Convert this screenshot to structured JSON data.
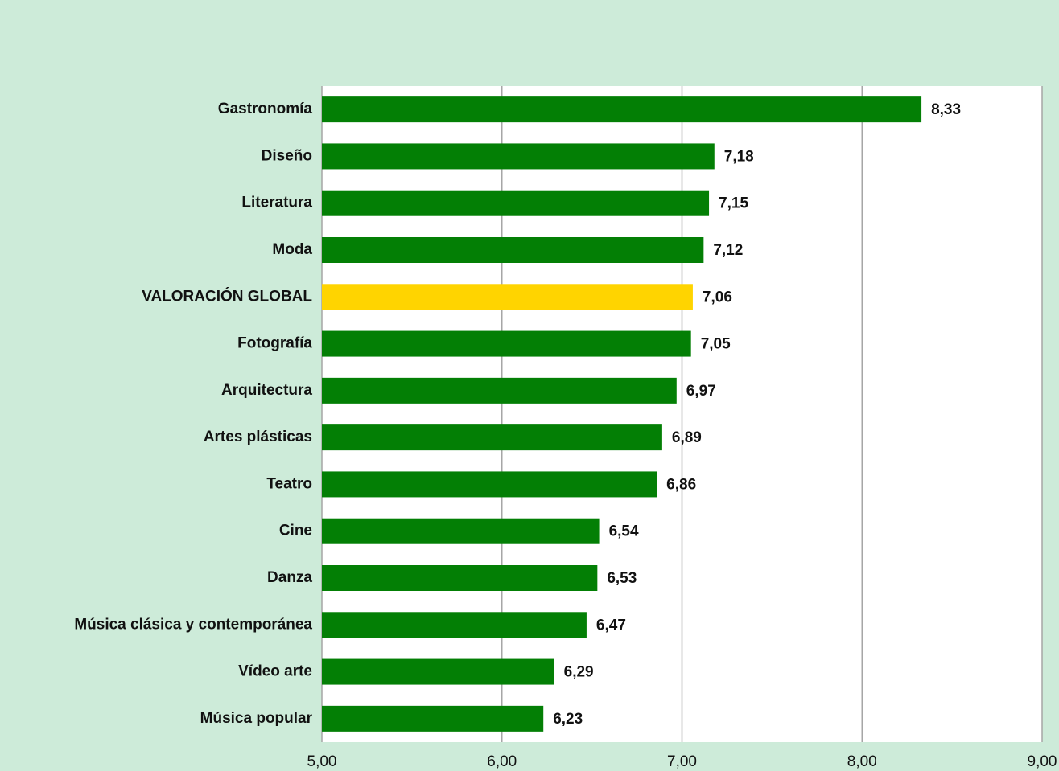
{
  "chart_data": {
    "type": "barh",
    "categories": [
      "Gastronomía",
      "Diseño",
      "Literatura",
      "Moda",
      "VALORACIÓN GLOBAL",
      "Fotografía",
      "Arquitectura",
      "Artes plásticas",
      "Teatro",
      "Cine",
      "Danza",
      "Música clásica y contemporánea",
      "Vídeo arte",
      "Música popular"
    ],
    "values": [
      8.33,
      7.18,
      7.15,
      7.12,
      7.06,
      7.05,
      6.97,
      6.89,
      6.86,
      6.54,
      6.53,
      6.47,
      6.29,
      6.23
    ],
    "value_labels": [
      "8,33",
      "7,18",
      "7,15",
      "7,12",
      "7,06",
      "7,05",
      "6,97",
      "6,89",
      "6,86",
      "6,54",
      "6,53",
      "6,47",
      "6,29",
      "6,23"
    ],
    "colors": [
      "#037f05",
      "#037f05",
      "#037f05",
      "#037f05",
      "#ffd400",
      "#037f05",
      "#037f05",
      "#037f05",
      "#037f05",
      "#037f05",
      "#037f05",
      "#037f05",
      "#037f05",
      "#037f05"
    ],
    "xlim": [
      5,
      9
    ],
    "xticks": [
      {
        "value": 5,
        "label": "5,00"
      },
      {
        "value": 6,
        "label": "6,00"
      },
      {
        "value": 7,
        "label": "7,00"
      },
      {
        "value": 8,
        "label": "8,00"
      },
      {
        "value": 9,
        "label": "9,00"
      }
    ],
    "grid": true
  }
}
